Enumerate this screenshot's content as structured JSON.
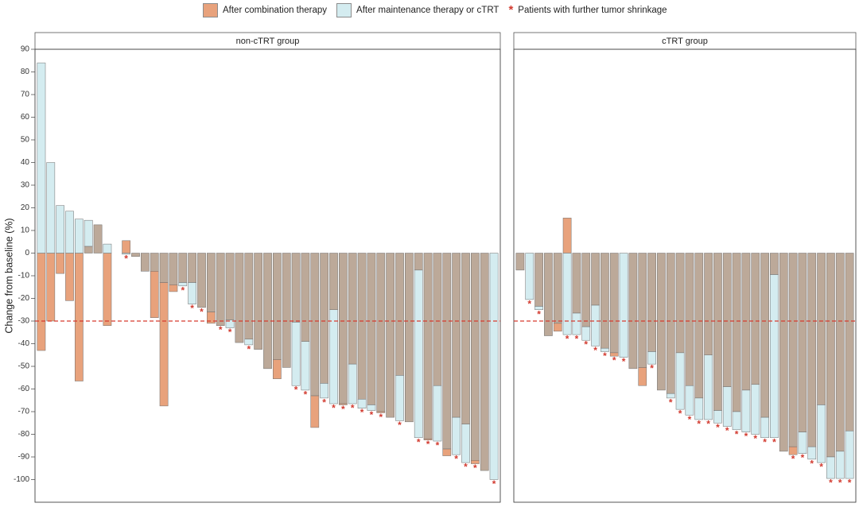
{
  "legend": {
    "combination": "After combination therapy",
    "maintenance": "After maintenance therapy or cTRT",
    "shrinkage": "Patients with further tumor shrinkage"
  },
  "colors": {
    "combination": "#e8a27c",
    "maintenance": "#d4ecf0",
    "overlap": "#bca999",
    "star": "#d23a2f",
    "reference_line": "#d63b2f"
  },
  "chart_data": {
    "type": "bar",
    "ylabel": "Change from baseline (%)",
    "ylim": [
      -110,
      90
    ],
    "yticks": [
      90,
      80,
      70,
      60,
      50,
      40,
      30,
      20,
      10,
      0,
      -10,
      -20,
      -30,
      -40,
      -50,
      -60,
      -70,
      -80,
      -90,
      -100
    ],
    "reference_line": -30,
    "panels": [
      {
        "title": "non-cTRT group",
        "patients": [
          {
            "combination": -43,
            "maintenance": 84,
            "shrinkage": false
          },
          {
            "combination": -30,
            "maintenance": 40,
            "shrinkage": false
          },
          {
            "combination": -9,
            "maintenance": 21,
            "shrinkage": false
          },
          {
            "combination": -21,
            "maintenance": 18.5,
            "shrinkage": false
          },
          {
            "combination": -56.5,
            "maintenance": 15,
            "shrinkage": false
          },
          {
            "combination": 3,
            "maintenance": 14.5,
            "shrinkage": false
          },
          {
            "combination": 12.5,
            "maintenance": 12.5,
            "shrinkage": false
          },
          {
            "combination": -32,
            "maintenance": 4,
            "shrinkage": false
          },
          {
            "combination": 0,
            "maintenance": 0,
            "shrinkage": false
          },
          {
            "combination": 5.5,
            "maintenance": -0.5,
            "shrinkage": true
          },
          {
            "combination": -1.5,
            "maintenance": -1.5,
            "shrinkage": false
          },
          {
            "combination": -8,
            "maintenance": -8,
            "shrinkage": false
          },
          {
            "combination": -28.5,
            "maintenance": -8,
            "shrinkage": false
          },
          {
            "combination": -67.5,
            "maintenance": -13,
            "shrinkage": false
          },
          {
            "combination": -17,
            "maintenance": -14,
            "shrinkage": false
          },
          {
            "combination": -13,
            "maintenance": -14.5,
            "shrinkage": true
          },
          {
            "combination": -13,
            "maintenance": -22.5,
            "shrinkage": true
          },
          {
            "combination": -24,
            "maintenance": -24,
            "shrinkage": true
          },
          {
            "combination": -31,
            "maintenance": -26,
            "shrinkage": false
          },
          {
            "combination": -32,
            "maintenance": -32,
            "shrinkage": true
          },
          {
            "combination": -29.5,
            "maintenance": -33,
            "shrinkage": true
          },
          {
            "combination": -39.5,
            "maintenance": -39.5,
            "shrinkage": false
          },
          {
            "combination": -38,
            "maintenance": -40.5,
            "shrinkage": true
          },
          {
            "combination": -42.5,
            "maintenance": -42.5,
            "shrinkage": false
          },
          {
            "combination": -51,
            "maintenance": -51,
            "shrinkage": false
          },
          {
            "combination": -55.5,
            "maintenance": -47,
            "shrinkage": false
          },
          {
            "combination": -50.5,
            "maintenance": -50.5,
            "shrinkage": false
          },
          {
            "combination": -30.5,
            "maintenance": -58.5,
            "shrinkage": true
          },
          {
            "combination": -39,
            "maintenance": -60.5,
            "shrinkage": true
          },
          {
            "combination": -77,
            "maintenance": -63,
            "shrinkage": false
          },
          {
            "combination": -57.5,
            "maintenance": -64,
            "shrinkage": true
          },
          {
            "combination": -25,
            "maintenance": -66.5,
            "shrinkage": true
          },
          {
            "combination": -67,
            "maintenance": -66.5,
            "shrinkage": true
          },
          {
            "combination": -49,
            "maintenance": -66.5,
            "shrinkage": true
          },
          {
            "combination": -64.5,
            "maintenance": -68.5,
            "shrinkage": true
          },
          {
            "combination": -67,
            "maintenance": -69.5,
            "shrinkage": true
          },
          {
            "combination": -70.5,
            "maintenance": -70,
            "shrinkage": true
          },
          {
            "combination": -72.5,
            "maintenance": -72.5,
            "shrinkage": false
          },
          {
            "combination": -54,
            "maintenance": -74,
            "shrinkage": true
          },
          {
            "combination": -74.5,
            "maintenance": -74.5,
            "shrinkage": false
          },
          {
            "combination": -7.5,
            "maintenance": -81.5,
            "shrinkage": true
          },
          {
            "combination": -82.5,
            "maintenance": -82,
            "shrinkage": true
          },
          {
            "combination": -58.5,
            "maintenance": -83,
            "shrinkage": true
          },
          {
            "combination": -89.5,
            "maintenance": -86.5,
            "shrinkage": false
          },
          {
            "combination": -72.5,
            "maintenance": -89,
            "shrinkage": true
          },
          {
            "combination": -75.5,
            "maintenance": -92.5,
            "shrinkage": true
          },
          {
            "combination": -93,
            "maintenance": -91.5,
            "shrinkage": true
          },
          {
            "combination": -96,
            "maintenance": -96,
            "shrinkage": false
          },
          {
            "combination": 0,
            "maintenance": -100,
            "shrinkage": true
          }
        ]
      },
      {
        "title": "cTRT group",
        "patients": [
          {
            "combination": -7.5,
            "maintenance": -7.5,
            "shrinkage": false
          },
          {
            "combination": 0,
            "maintenance": -20.5,
            "shrinkage": true
          },
          {
            "combination": -23.5,
            "maintenance": -25,
            "shrinkage": true
          },
          {
            "combination": -36.5,
            "maintenance": -36.5,
            "shrinkage": false
          },
          {
            "combination": -34.5,
            "maintenance": -31,
            "shrinkage": false
          },
          {
            "combination": 15.5,
            "maintenance": -36,
            "shrinkage": true
          },
          {
            "combination": -26.5,
            "maintenance": -36,
            "shrinkage": true
          },
          {
            "combination": -32.5,
            "maintenance": -38.5,
            "shrinkage": true
          },
          {
            "combination": -23,
            "maintenance": -41,
            "shrinkage": true
          },
          {
            "combination": -42,
            "maintenance": -43.5,
            "shrinkage": true
          },
          {
            "combination": -45.5,
            "maintenance": -44,
            "shrinkage": true
          },
          {
            "combination": 0,
            "maintenance": -46,
            "shrinkage": true
          },
          {
            "combination": -51,
            "maintenance": -51,
            "shrinkage": false
          },
          {
            "combination": -58.5,
            "maintenance": -50.5,
            "shrinkage": false
          },
          {
            "combination": -43.5,
            "maintenance": -49,
            "shrinkage": true
          },
          {
            "combination": -60.5,
            "maintenance": -60.5,
            "shrinkage": false
          },
          {
            "combination": -62,
            "maintenance": -64,
            "shrinkage": true
          },
          {
            "combination": -44,
            "maintenance": -69,
            "shrinkage": true
          },
          {
            "combination": -58.5,
            "maintenance": -71.5,
            "shrinkage": true
          },
          {
            "combination": -64,
            "maintenance": -73.5,
            "shrinkage": true
          },
          {
            "combination": -45,
            "maintenance": -73.5,
            "shrinkage": true
          },
          {
            "combination": -69.5,
            "maintenance": -75,
            "shrinkage": true
          },
          {
            "combination": -59,
            "maintenance": -76.5,
            "shrinkage": true
          },
          {
            "combination": -70,
            "maintenance": -78,
            "shrinkage": true
          },
          {
            "combination": -60.5,
            "maintenance": -79,
            "shrinkage": true
          },
          {
            "combination": -58,
            "maintenance": -80,
            "shrinkage": true
          },
          {
            "combination": -72.5,
            "maintenance": -81.5,
            "shrinkage": true
          },
          {
            "combination": -9.5,
            "maintenance": -81.5,
            "shrinkage": true
          },
          {
            "combination": -87.5,
            "maintenance": -87.5,
            "shrinkage": false
          },
          {
            "combination": -89,
            "maintenance": -85.5,
            "shrinkage": true
          },
          {
            "combination": -79,
            "maintenance": -88.5,
            "shrinkage": true
          },
          {
            "combination": -85.5,
            "maintenance": -91,
            "shrinkage": true
          },
          {
            "combination": -67,
            "maintenance": -92.5,
            "shrinkage": true
          },
          {
            "combination": -90,
            "maintenance": -99.5,
            "shrinkage": true
          },
          {
            "combination": -87.5,
            "maintenance": -99.5,
            "shrinkage": true
          },
          {
            "combination": -78.5,
            "maintenance": -99.5,
            "shrinkage": true
          }
        ]
      }
    ]
  }
}
